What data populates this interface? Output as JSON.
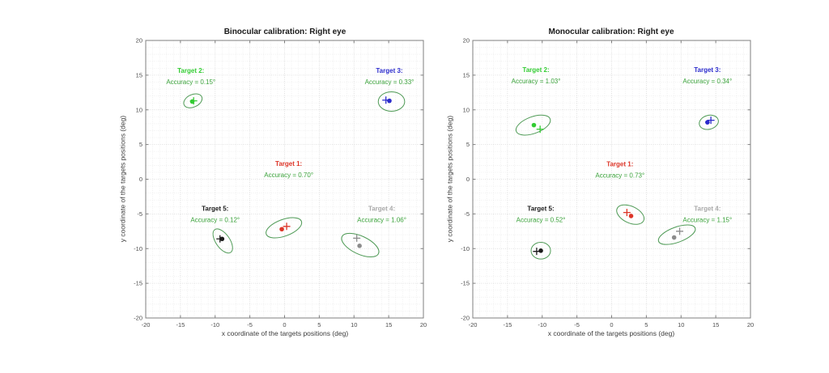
{
  "style": {
    "background": "#ffffff",
    "axis_color": "#7f7f7f",
    "tick_label_color": "#4d4d4d",
    "title_color": "#1a1a1a",
    "axis_label_color": "#3c3c3c",
    "grid_major_color": "#d8d8d8",
    "grid_minor_color": "#ebebeb",
    "ellipse_color": "#4e9a55",
    "accuracy_text_color": "#3aa23a"
  },
  "chart_data": [
    {
      "type": "scatter",
      "id": "binocular",
      "title": "Binocular calibration: Right eye",
      "xlabel": "x coordinate of the targets positions (deg)",
      "ylabel": "y coordinate of the targets positions (deg)",
      "xlim": [
        -20,
        20
      ],
      "ylim": [
        -20,
        20
      ],
      "xticks": [
        -20,
        -15,
        -10,
        -5,
        0,
        5,
        10,
        15,
        20
      ],
      "yticks": [
        -20,
        -15,
        -10,
        -5,
        0,
        5,
        10,
        15,
        20
      ],
      "grid": {
        "major_step": 5,
        "minor_step": 1,
        "grid_on": true
      },
      "legend": "none",
      "targets": [
        {
          "name": "Target 1",
          "label": "Target 1:",
          "accuracy_text": "Accuracy = 0.70°",
          "accuracy_deg": 0.7,
          "color": "#dd3528",
          "label_color": "#dd3528",
          "label_pos": {
            "x": 0.6,
            "y": 2.3
          },
          "dot": {
            "x": -0.4,
            "y": -7.2
          },
          "cross": {
            "x": 0.3,
            "y": -6.8
          },
          "ellipse": {
            "cx": -0.1,
            "cy": -7.0,
            "rx": 2.7,
            "ry": 1.2,
            "rotation_deg": 20
          }
        },
        {
          "name": "Target 2",
          "label": "Target 2:",
          "accuracy_text": "Accuracy = 0.15°",
          "accuracy_deg": 0.15,
          "color": "#33cc33",
          "label_color": "#33cc33",
          "label_pos": {
            "x": -13.5,
            "y": 15.7
          },
          "dot": {
            "x": -13.3,
            "y": 11.2
          },
          "cross": {
            "x": -13.1,
            "y": 11.3
          },
          "ellipse": {
            "cx": -13.2,
            "cy": 11.3,
            "rx": 1.4,
            "ry": 0.9,
            "rotation_deg": 25
          }
        },
        {
          "name": "Target 3",
          "label": "Target 3:",
          "accuracy_text": "Accuracy = 0.33°",
          "accuracy_deg": 0.33,
          "color": "#2b2bcc",
          "label_color": "#2b2bcc",
          "label_pos": {
            "x": 15.1,
            "y": 15.7
          },
          "dot": {
            "x": 15.1,
            "y": 11.3
          },
          "cross": {
            "x": 14.6,
            "y": 11.4
          },
          "ellipse": {
            "cx": 15.4,
            "cy": 11.2,
            "rx": 1.9,
            "ry": 1.4,
            "rotation_deg": 0
          }
        },
        {
          "name": "Target 4",
          "label": "Target 4:",
          "accuracy_text": "Accuracy = 1.06°",
          "accuracy_deg": 1.06,
          "color": "#8c8c8c",
          "label_color": "#a9a9a9",
          "label_pos": {
            "x": 14.0,
            "y": -4.2
          },
          "dot": {
            "x": 10.8,
            "y": -9.6
          },
          "cross": {
            "x": 10.4,
            "y": -8.5
          },
          "ellipse": {
            "cx": 10.9,
            "cy": -9.5,
            "rx": 2.9,
            "ry": 1.3,
            "rotation_deg": -25
          }
        },
        {
          "name": "Target 5",
          "label": "Target 5:",
          "accuracy_text": "Accuracy = 0.12°",
          "accuracy_deg": 0.12,
          "color": "#1a1a1a",
          "label_color": "#1a1a1a",
          "label_pos": {
            "x": -10.0,
            "y": -4.2
          },
          "dot": {
            "x": -9.0,
            "y": -8.6
          },
          "cross": {
            "x": -9.3,
            "y": -8.6
          },
          "ellipse": {
            "cx": -8.9,
            "cy": -8.9,
            "rx": 2.0,
            "ry": 1.0,
            "rotation_deg": -55
          }
        }
      ]
    },
    {
      "type": "scatter",
      "id": "monocular",
      "title": "Monocular calibration: Right eye",
      "xlabel": "x coordinate of the targets positions (deg)",
      "ylabel": "y coordinate of the targets positions (deg)",
      "xlim": [
        -20,
        20
      ],
      "ylim": [
        -20,
        20
      ],
      "xticks": [
        -20,
        -15,
        -10,
        -5,
        0,
        5,
        10,
        15,
        20
      ],
      "yticks": [
        -20,
        -15,
        -10,
        -5,
        0,
        5,
        10,
        15,
        20
      ],
      "grid": {
        "major_step": 5,
        "minor_step": 1,
        "grid_on": true
      },
      "legend": "none",
      "targets": [
        {
          "name": "Target 1",
          "label": "Target 1:",
          "accuracy_text": "Accuracy = 0.73°",
          "accuracy_deg": 0.73,
          "color": "#dd3528",
          "label_color": "#dd3528",
          "label_pos": {
            "x": 1.2,
            "y": 2.2
          },
          "dot": {
            "x": 2.8,
            "y": -5.3
          },
          "cross": {
            "x": 2.2,
            "y": -4.8
          },
          "ellipse": {
            "cx": 2.7,
            "cy": -5.1,
            "rx": 2.1,
            "ry": 1.2,
            "rotation_deg": -25
          }
        },
        {
          "name": "Target 2",
          "label": "Target 2:",
          "accuracy_text": "Accuracy = 1.03°",
          "accuracy_deg": 1.03,
          "color": "#33cc33",
          "label_color": "#33cc33",
          "label_pos": {
            "x": -10.9,
            "y": 15.8
          },
          "dot": {
            "x": -11.2,
            "y": 7.8
          },
          "cross": {
            "x": -10.3,
            "y": 7.2
          },
          "ellipse": {
            "cx": -11.3,
            "cy": 7.8,
            "rx": 2.6,
            "ry": 1.2,
            "rotation_deg": 20
          }
        },
        {
          "name": "Target 3",
          "label": "Target 3:",
          "accuracy_text": "Accuracy = 0.34°",
          "accuracy_deg": 0.34,
          "color": "#2b2bcc",
          "label_color": "#2b2bcc",
          "label_pos": {
            "x": 13.8,
            "y": 15.8
          },
          "dot": {
            "x": 13.8,
            "y": 8.2
          },
          "cross": {
            "x": 14.3,
            "y": 8.5
          },
          "ellipse": {
            "cx": 14.0,
            "cy": 8.2,
            "rx": 1.4,
            "ry": 1.0,
            "rotation_deg": 15
          }
        },
        {
          "name": "Target 4",
          "label": "Target 4:",
          "accuracy_text": "Accuracy = 1.15°",
          "accuracy_deg": 1.15,
          "color": "#8c8c8c",
          "label_color": "#a9a9a9",
          "label_pos": {
            "x": 13.8,
            "y": -4.2
          },
          "dot": {
            "x": 9.0,
            "y": -8.4
          },
          "cross": {
            "x": 9.8,
            "y": -7.5
          },
          "ellipse": {
            "cx": 9.4,
            "cy": -8.0,
            "rx": 2.8,
            "ry": 1.1,
            "rotation_deg": 20
          }
        },
        {
          "name": "Target 5",
          "label": "Target 5:",
          "accuracy_text": "Accuracy = 0.52°",
          "accuracy_deg": 0.52,
          "color": "#1a1a1a",
          "label_color": "#1a1a1a",
          "label_pos": {
            "x": -10.2,
            "y": -4.2
          },
          "dot": {
            "x": -10.2,
            "y": -10.3
          },
          "cross": {
            "x": -10.8,
            "y": -10.4
          },
          "ellipse": {
            "cx": -10.2,
            "cy": -10.3,
            "rx": 1.4,
            "ry": 1.2,
            "rotation_deg": 0
          }
        }
      ]
    }
  ]
}
